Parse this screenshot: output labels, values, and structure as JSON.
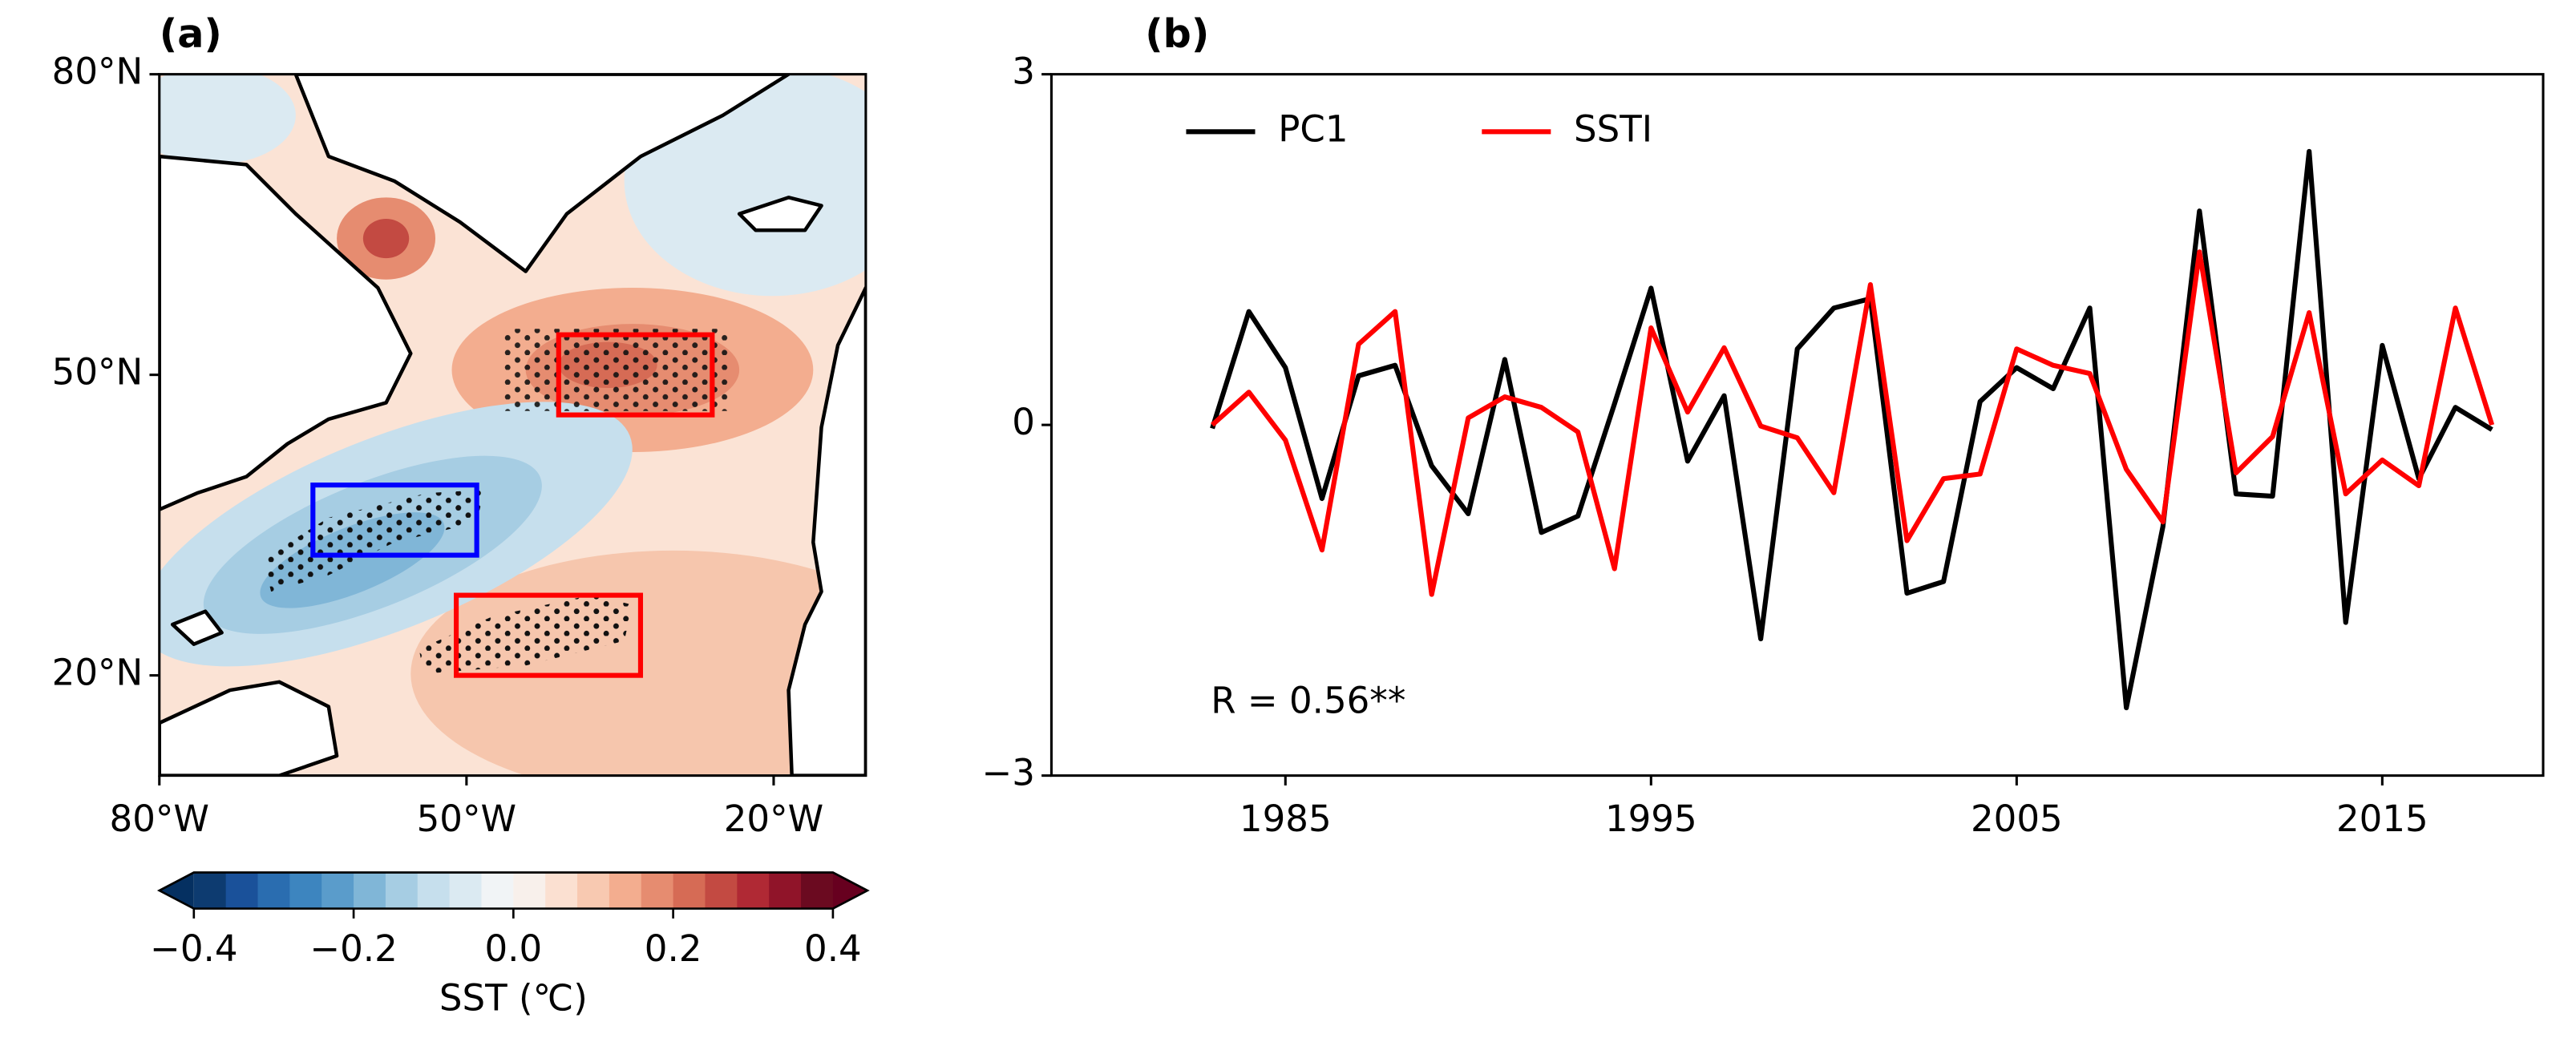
{
  "chart_data": [
    {
      "type": "map",
      "panel_label": "(a)",
      "xlim": [
        -80,
        -11
      ],
      "ylim": [
        10,
        80
      ],
      "xticks": [
        {
          "value": -80,
          "label": "80°W"
        },
        {
          "value": -50,
          "label": "50°W"
        },
        {
          "value": -20,
          "label": "20°W"
        }
      ],
      "yticks": [
        {
          "value": 20,
          "label": "20°N"
        },
        {
          "value": 50,
          "label": "50°N"
        },
        {
          "value": 80,
          "label": "80°N"
        }
      ],
      "regions": [
        {
          "color": "#ff0000",
          "lon": [
            -41,
            -26
          ],
          "lat": [
            46,
            54
          ]
        },
        {
          "color": "#0000ff",
          "lon": [
            -65,
            -49
          ],
          "lat": [
            32,
            39
          ]
        },
        {
          "color": "#ff0000",
          "lon": [
            -51,
            -33
          ],
          "lat": [
            20,
            28
          ]
        }
      ],
      "colorbar": {
        "label": "SST (℃)",
        "lim": [
          -0.4,
          0.4
        ],
        "ticks": [
          {
            "value": -0.4,
            "label": "−0.4"
          },
          {
            "value": -0.2,
            "label": "−0.2"
          },
          {
            "value": 0,
            "label": "0.0"
          },
          {
            "value": 0.2,
            "label": "0.2"
          },
          {
            "value": 0.4,
            "label": "0.4"
          }
        ],
        "colors": [
          "#0d3b70",
          "#1a519a",
          "#2a6db0",
          "#3d85bf",
          "#5a9ccb",
          "#80b6d7",
          "#a6cde3",
          "#c6dfed",
          "#dbeaf2",
          "#f1f4f6",
          "#f8f0eb",
          "#fbe0d1",
          "#f8c9b1",
          "#f3ad8f",
          "#e68c70",
          "#d66b55",
          "#c34a42",
          "#b02934",
          "#901429",
          "#6b0a20"
        ],
        "extend_colors": [
          "#053061",
          "#67001f"
        ]
      }
    },
    {
      "type": "line",
      "panel_label": "(b)",
      "annotation": "R = 0.56**",
      "x": [
        1983,
        1984,
        1985,
        1986,
        1987,
        1988,
        1989,
        1990,
        1991,
        1992,
        1993,
        1994,
        1995,
        1996,
        1997,
        1998,
        1999,
        2000,
        2001,
        2002,
        2003,
        2004,
        2005,
        2006,
        2007,
        2008,
        2009,
        2010,
        2011,
        2012,
        2013,
        2014,
        2015,
        2016,
        2017,
        2018
      ],
      "series": [
        {
          "name": "PC1",
          "color": "#000000",
          "values": [
            -0.03,
            0.97,
            0.49,
            -0.63,
            0.42,
            0.51,
            -0.35,
            -0.76,
            0.56,
            -0.92,
            -0.78,
            0.18,
            1.17,
            -0.31,
            0.25,
            -1.83,
            0.65,
            1.0,
            1.08,
            -1.44,
            -1.34,
            0.2,
            0.49,
            0.31,
            1.0,
            -2.42,
            -0.87,
            1.83,
            -0.59,
            -0.61,
            2.34,
            -1.69,
            0.68,
            -0.46,
            0.15,
            -0.04
          ]
        },
        {
          "name": "SSTI",
          "color": "#ff0000",
          "values": [
            0.0,
            0.28,
            -0.13,
            -1.07,
            0.69,
            0.97,
            -1.45,
            0.06,
            0.24,
            0.15,
            -0.06,
            -1.23,
            0.83,
            0.11,
            0.66,
            -0.01,
            -0.11,
            -0.58,
            1.2,
            -0.99,
            -0.46,
            -0.42,
            0.65,
            0.51,
            0.44,
            -0.38,
            -0.83,
            1.48,
            -0.41,
            -0.1,
            0.96,
            -0.59,
            -0.3,
            -0.52,
            1.0,
            0.0
          ]
        }
      ],
      "xlim": [
        1978.6,
        2019.4
      ],
      "xticks": [
        1985,
        1995,
        2005,
        2015
      ],
      "ylim": [
        -3,
        3
      ],
      "yticks": [
        {
          "value": -3,
          "label": "−3"
        },
        0,
        3
      ],
      "grid": false,
      "legend": "upper left"
    }
  ]
}
